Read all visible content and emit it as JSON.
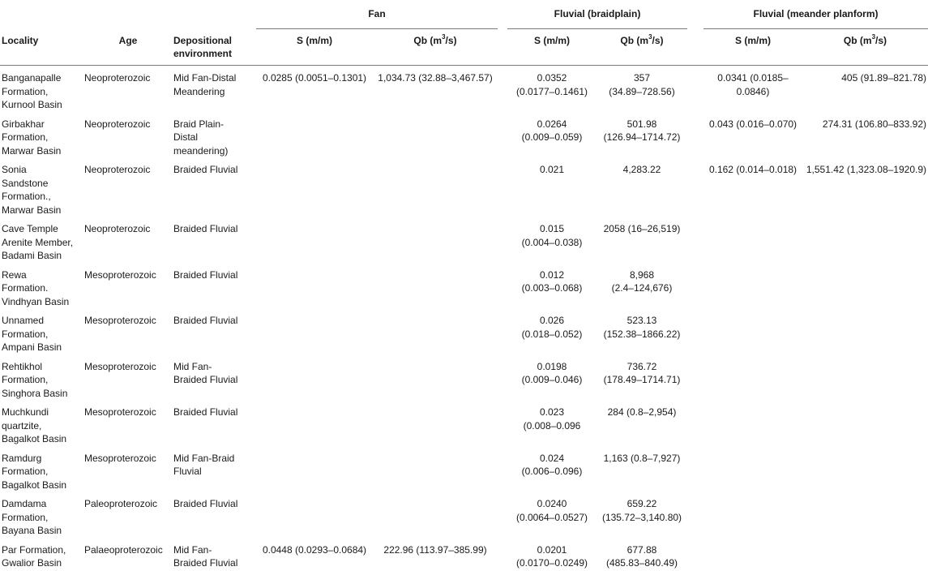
{
  "table": {
    "group_headers": {
      "fan": "Fan",
      "braid": "Fluvial (braidplain)",
      "meander": "Fluvial (meander planform)"
    },
    "column_headers": {
      "locality": "Locality",
      "age": "Age",
      "environment_line1": "Depositional",
      "environment_line2": "environment",
      "s": "S (m/m)",
      "qb_prefix": "Qb (m",
      "qb_sup": "3",
      "qb_suffix": "/s)"
    },
    "rows": [
      {
        "locality": [
          "Banganapalle",
          "Formation,",
          "Kurnool Basin"
        ],
        "age": "Neoproterozoic",
        "env": [
          "Mid Fan-Distal",
          "Meandering"
        ],
        "fan_s": "0.0285 (0.0051–0.1301)",
        "fan_qb": "1,034.73 (32.88–3,467.57)",
        "braid_s": [
          "0.0352",
          "(0.0177–0.1461)"
        ],
        "braid_qb": [
          "357",
          "(34.89–728.56)"
        ],
        "mea_s": "0.0341 (0.0185–0.0846)",
        "mea_qb": "405 (91.89–821.78)"
      },
      {
        "locality": [
          "Girbakhar",
          "Formation,",
          "Marwar Basin"
        ],
        "age": "Neoproterozoic",
        "env": [
          "Braid Plain-",
          "Distal",
          "meandering)"
        ],
        "fan_s": "",
        "fan_qb": "",
        "braid_s": [
          "0.0264",
          "(0.009–0.059)"
        ],
        "braid_qb": [
          "501.98",
          "(126.94–1714.72)"
        ],
        "mea_s": "0.043 (0.016–0.070)",
        "mea_qb": "274.31 (106.80–833.92)"
      },
      {
        "locality": [
          "Sonia",
          "Sandstone",
          "Formation.,",
          "Marwar Basin"
        ],
        "age": "Neoproterozoic",
        "env": [
          "Braided Fluvial"
        ],
        "fan_s": "",
        "fan_qb": "",
        "braid_s": [
          "0.021"
        ],
        "braid_qb": [
          "4,283.22"
        ],
        "mea_s": "0.162 (0.014–0.018)",
        "mea_qb": "1,551.42 (1,323.08–1920.9)"
      },
      {
        "locality": [
          "Cave Temple",
          "Arenite Member,",
          "Badami Basin"
        ],
        "age": "Neoproterozoic",
        "env": [
          "Braided Fluvial"
        ],
        "fan_s": "",
        "fan_qb": "",
        "braid_s": [
          "0.015",
          "(0.004–0.038)"
        ],
        "braid_qb": [
          "2058 (16–26,519)"
        ],
        "mea_s": "",
        "mea_qb": ""
      },
      {
        "locality": [
          "Rewa",
          "Formation.",
          "Vindhyan Basin"
        ],
        "age": "Mesoproterozoic",
        "env": [
          "Braided Fluvial"
        ],
        "fan_s": "",
        "fan_qb": "",
        "braid_s": [
          "0.012",
          "(0.003–0.068)"
        ],
        "braid_qb": [
          "8,968",
          "(2.4–124,676)"
        ],
        "mea_s": "",
        "mea_qb": ""
      },
      {
        "locality": [
          "Unnamed",
          "Formation,",
          "Ampani Basin"
        ],
        "age": "Mesoproterozoic",
        "env": [
          "Braided Fluvial"
        ],
        "fan_s": "",
        "fan_qb": "",
        "braid_s": [
          "0.026",
          "(0.018–0.052)"
        ],
        "braid_qb": [
          "523.13",
          "(152.38–1866.22)"
        ],
        "mea_s": "",
        "mea_qb": ""
      },
      {
        "locality": [
          "Rehtikhol",
          "Formation,",
          "Singhora Basin"
        ],
        "age": "Mesoproterozoic",
        "env": [
          "Mid Fan-",
          "Braided Fluvial"
        ],
        "fan_s": "",
        "fan_qb": "",
        "braid_s": [
          "0.0198",
          "(0.009–0.046)"
        ],
        "braid_qb": [
          "736.72",
          "(178.49–1714.71)"
        ],
        "mea_s": "",
        "mea_qb": ""
      },
      {
        "locality": [
          "Muchkundi",
          "quartzite,",
          "Bagalkot Basin"
        ],
        "age": "Mesoproterozoic",
        "env": [
          "Braided Fluvial"
        ],
        "fan_s": "",
        "fan_qb": "",
        "braid_s": [
          "0.023",
          "(0.008–0.096"
        ],
        "braid_qb": [
          "284 (0.8–2,954)"
        ],
        "mea_s": "",
        "mea_qb": ""
      },
      {
        "locality": [
          "Ramdurg",
          "Formation,",
          "Bagalkot Basin"
        ],
        "age": "Mesoproterozoic",
        "env": [
          "Mid Fan-Braid",
          "Fluvial"
        ],
        "fan_s": "",
        "fan_qb": "",
        "braid_s": [
          "0.024",
          "(0.006–0.096)"
        ],
        "braid_qb": [
          "1,163 (0.8–7,927)"
        ],
        "mea_s": "",
        "mea_qb": ""
      },
      {
        "locality": [
          "Damdama",
          "Formation,",
          "Bayana Basin"
        ],
        "age": "Paleoproterozoic",
        "env": [
          "Braided Fluvial"
        ],
        "fan_s": "",
        "fan_qb": "",
        "braid_s": [
          "0.0240",
          "(0.0064–0.0527)"
        ],
        "braid_qb": [
          "659.22",
          "(135.72–3,140.80)"
        ],
        "mea_s": "",
        "mea_qb": ""
      },
      {
        "locality": [
          "Par Formation,",
          "Gwalior Basin"
        ],
        "age": "Palaeoproterozoic",
        "env": [
          "Mid Fan-",
          "Braided Fluvial"
        ],
        "fan_s": "0.0448 (0.0293–0.0684)",
        "fan_qb": "222.96 (113.97–385.99)",
        "braid_s": [
          "0.0201",
          "(0.0170–0.0249)"
        ],
        "braid_qb": [
          "677.88",
          "(485.83–840.49)"
        ],
        "mea_s": "",
        "mea_qb": ""
      }
    ]
  }
}
